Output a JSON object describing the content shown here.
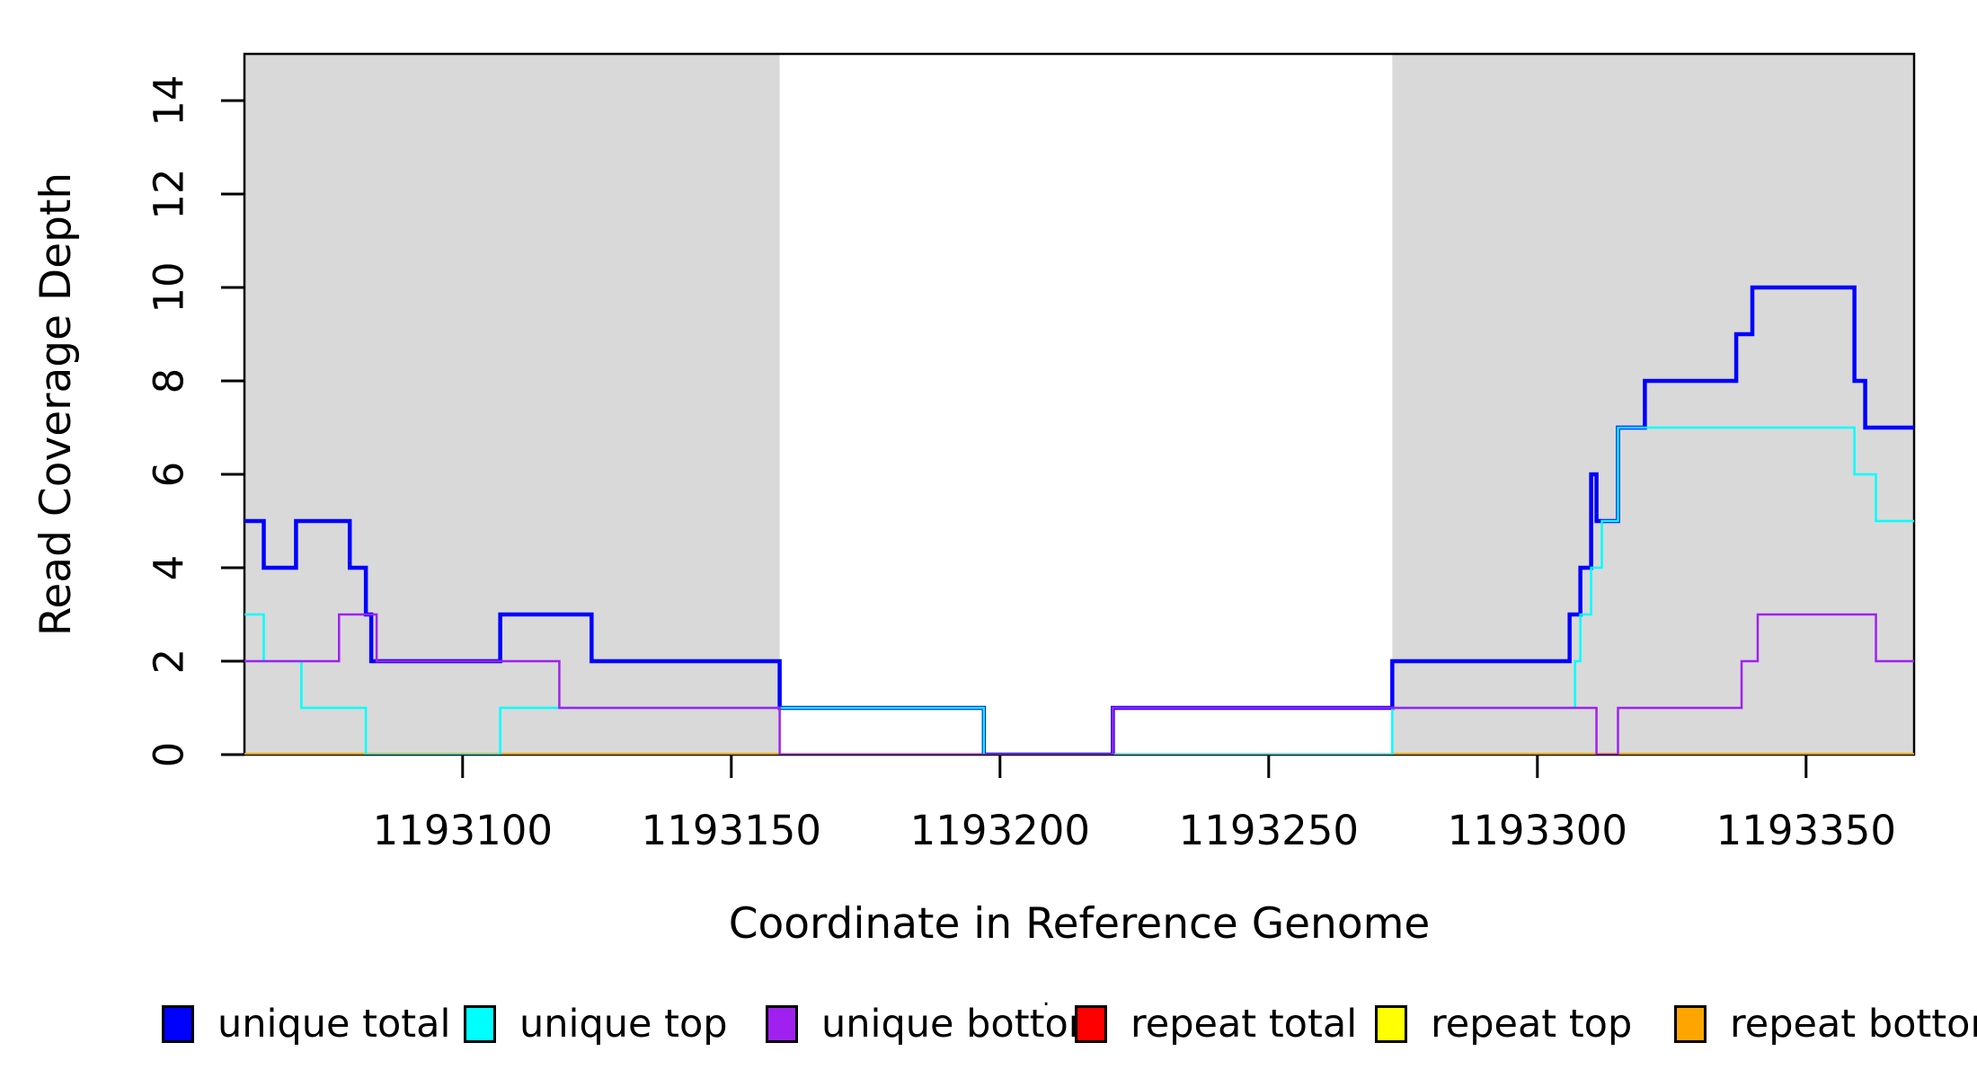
{
  "chart_data": {
    "type": "line",
    "subtype": "step-coverage",
    "title": "",
    "xlabel": "Coordinate in Reference Genome",
    "ylabel": "Read Coverage Depth",
    "xlim": [
      1193059.4,
      1193370.1
    ],
    "ylim": [
      0,
      15
    ],
    "x_ticks": [
      1193100,
      1193150,
      1193200,
      1193250,
      1193300,
      1193350
    ],
    "y_ticks": [
      0,
      2,
      4,
      6,
      8,
      10,
      12,
      14
    ],
    "grid": false,
    "legend_position": "bottom",
    "plot_background": "#FFFFFF",
    "box_color": "#000000",
    "shaded_regions": {
      "color": "#D9D9D9",
      "meaning": "repeat regions",
      "x_ranges": [
        [
          1193059.4,
          1193159
        ],
        [
          1193273,
          1193370.1
        ]
      ]
    },
    "draw_order": [
      "repeat top",
      "repeat total",
      "repeat bottom",
      "unique total",
      "unique top",
      "unique bottom"
    ],
    "series": [
      {
        "name": "unique total",
        "color": "#0000FF",
        "line_width": 4.5,
        "segments": [
          [
            1193059,
            1193063,
            5
          ],
          [
            1193063,
            1193069,
            4
          ],
          [
            1193069,
            1193079,
            5
          ],
          [
            1193079,
            1193082,
            4
          ],
          [
            1193082,
            1193083,
            3
          ],
          [
            1193083,
            1193107,
            2
          ],
          [
            1193107,
            1193124,
            3
          ],
          [
            1193124,
            1193159,
            2
          ],
          [
            1193159,
            1193197,
            1
          ],
          [
            1193197,
            1193221,
            0
          ],
          [
            1193221,
            1193273,
            1
          ],
          [
            1193273,
            1193306,
            2
          ],
          [
            1193306,
            1193308,
            3
          ],
          [
            1193308,
            1193310,
            4
          ],
          [
            1193310,
            1193311,
            6
          ],
          [
            1193311,
            1193315,
            5
          ],
          [
            1193315,
            1193320,
            7
          ],
          [
            1193320,
            1193337,
            8
          ],
          [
            1193337,
            1193340,
            9
          ],
          [
            1193340,
            1193359,
            10
          ],
          [
            1193359,
            1193361,
            8
          ],
          [
            1193361,
            1193371,
            7
          ]
        ]
      },
      {
        "name": "unique top",
        "color": "#00FFFF",
        "line_width": 2.5,
        "segments": [
          [
            1193059,
            1193063,
            3
          ],
          [
            1193063,
            1193070,
            2
          ],
          [
            1193070,
            1193082,
            1
          ],
          [
            1193082,
            1193107,
            0
          ],
          [
            1193107,
            1193197,
            1
          ],
          [
            1193197,
            1193273,
            0
          ],
          [
            1193273,
            1193307,
            1
          ],
          [
            1193307,
            1193308,
            2
          ],
          [
            1193308,
            1193310,
            3
          ],
          [
            1193310,
            1193312,
            4
          ],
          [
            1193312,
            1193315,
            5
          ],
          [
            1193315,
            1193359,
            7
          ],
          [
            1193359,
            1193363,
            6
          ],
          [
            1193363,
            1193371,
            5
          ]
        ]
      },
      {
        "name": "unique bottom",
        "color": "#A020F0",
        "line_width": 2.5,
        "segments": [
          [
            1193059,
            1193077,
            2
          ],
          [
            1193077,
            1193084,
            3
          ],
          [
            1193084,
            1193118,
            2
          ],
          [
            1193118,
            1193159,
            1
          ],
          [
            1193159,
            1193221,
            0
          ],
          [
            1193221,
            1193311,
            1
          ],
          [
            1193311,
            1193315,
            0
          ],
          [
            1193315,
            1193338,
            1
          ],
          [
            1193338,
            1193341,
            2
          ],
          [
            1193341,
            1193363,
            3
          ],
          [
            1193363,
            1193371,
            2
          ]
        ]
      },
      {
        "name": "repeat total",
        "color": "#FF0000",
        "line_width": 3,
        "segments": [
          [
            1193059,
            1193371,
            0
          ]
        ]
      },
      {
        "name": "repeat top",
        "color": "#FFFF00",
        "line_width": 2.5,
        "segments": [
          [
            1193059,
            1193371,
            0
          ]
        ]
      },
      {
        "name": "repeat bottom",
        "color": "#FFA500",
        "line_width": 4,
        "segments": [
          [
            1193059,
            1193159,
            0
          ],
          [
            1193273,
            1193371,
            0
          ]
        ]
      }
    ]
  },
  "legend": {
    "entries": [
      {
        "label": "unique total",
        "color": "#0000FF"
      },
      {
        "label": "unique top",
        "color": "#00FFFF"
      },
      {
        "label": "unique bottom",
        "color": "#A020F0"
      },
      {
        "label": "repeat total",
        "color": "#FF0000"
      },
      {
        "label": "repeat top",
        "color": "#FFFF00"
      },
      {
        "label": "repeat bottom",
        "color": "#FFA500"
      }
    ],
    "stray_mark": "."
  }
}
